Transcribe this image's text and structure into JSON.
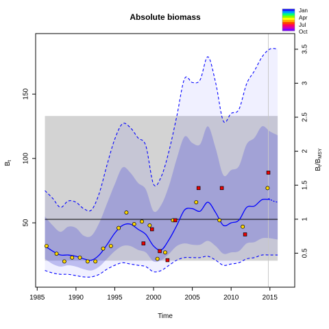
{
  "chart_data": {
    "type": "line",
    "title": "Absolute biomass",
    "xlabel": "Time",
    "ylabel": "B",
    "ylabel_sub": "t",
    "y2label": "B",
    "y2label_sub": "t",
    "y2label_sep": "/B",
    "y2label_sub2": "MSY",
    "xlim": [
      1984.8,
      2018.2
    ],
    "ylim": [
      0,
      197
    ],
    "y2lim": [
      0,
      3.73
    ],
    "x_ticks": [
      1985,
      1990,
      1995,
      2000,
      2005,
      2010,
      2015
    ],
    "y_ticks": [
      50,
      100,
      150
    ],
    "y2_ticks": [
      0.5,
      1.0,
      1.5,
      2.0,
      2.5,
      3.0,
      3.5
    ],
    "y2_tick_labels": [
      "0.5",
      "1",
      "1.5",
      "2",
      "2.5",
      "3",
      "3.5"
    ],
    "bmsy_line": 52.7,
    "gray_band": {
      "x": [
        1986,
        2016
      ],
      "y": [
        20.6,
        133
      ]
    },
    "vline_x": 2014.8,
    "grid": false,
    "legend": {
      "position": "top-right",
      "entries": [
        "Jan",
        "Apr",
        "Jul",
        "Oct"
      ],
      "colors": [
        "#1a1aff",
        "#00a0ff",
        "#00ff80",
        "#80ff00",
        "#ffff00",
        "#ffb000",
        "#ff4000",
        "#ff0060",
        "#d000b0",
        "#8000ff"
      ]
    },
    "series": [
      {
        "role": "upper_ci",
        "color": "#0000ff",
        "x": [
          1986,
          1987,
          1988,
          1989,
          1990,
          1991,
          1992,
          1993,
          1994,
          1995,
          1996,
          1997,
          1998,
          1999,
          2000,
          2001,
          2002,
          2003,
          2004,
          2005,
          2006,
          2007,
          2008,
          2009,
          2010,
          2011,
          2012,
          2013,
          2014,
          2015,
          2016
        ],
        "y": [
          75,
          69,
          62,
          67,
          66,
          61,
          60,
          73,
          95,
          115,
          127,
          124,
          116,
          110,
          80,
          86,
          106,
          133,
          162,
          159,
          161,
          179,
          159,
          129,
          135,
          138,
          158,
          168,
          179,
          185,
          185
        ]
      },
      {
        "role": "median",
        "color": "#0000ff",
        "x": [
          1986,
          1987,
          1988,
          1989,
          1990,
          1991,
          1992,
          1993,
          1994,
          1995,
          1996,
          1997,
          1998,
          1999,
          2000,
          2001,
          2002,
          2003,
          2004,
          2005,
          2006,
          2007,
          2008,
          2009,
          2010,
          2011,
          2012,
          2013,
          2014,
          2015,
          2016
        ],
        "y": [
          32,
          28,
          25,
          25,
          24,
          22,
          21,
          25,
          33,
          42,
          48,
          49,
          45,
          41,
          32,
          29,
          37,
          48,
          60,
          61,
          59,
          66,
          58,
          48,
          50,
          52,
          62,
          63,
          68,
          68,
          67
        ]
      },
      {
        "role": "lower_ci",
        "color": "#0000ff",
        "x": [
          1986,
          1987,
          1988,
          1989,
          1990,
          1991,
          1992,
          1993,
          1994,
          1995,
          1996,
          1997,
          1998,
          1999,
          2000,
          2001,
          2002,
          2003,
          2004,
          2005,
          2006,
          2007,
          2008,
          2009,
          2010,
          2011,
          2012,
          2013,
          2014,
          2015,
          2016
        ],
        "y": [
          13,
          11,
          10,
          10,
          9,
          8,
          8,
          10,
          14,
          17,
          19,
          18,
          17,
          16,
          12,
          13,
          17,
          21,
          23,
          23,
          23,
          24,
          21,
          17,
          18,
          19,
          22,
          23,
          25,
          25,
          25
        ]
      },
      {
        "role": "projection",
        "color": "#0000ff",
        "x": [
          2014.8,
          2015.4,
          2016
        ],
        "y": [
          69,
          67,
          66
        ]
      }
    ],
    "inner_ci": {
      "x": [
        1986,
        1987,
        1988,
        1989,
        1990,
        1991,
        1992,
        1993,
        1994,
        1995,
        1996,
        1997,
        1998,
        1999,
        2000,
        2001,
        2002,
        2003,
        2004,
        2005,
        2006,
        2007,
        2008,
        2009,
        2010,
        2011,
        2012,
        2013,
        2014,
        2015,
        2016
      ],
      "upper": [
        55,
        48,
        43,
        47,
        46,
        40,
        40,
        50,
        65,
        80,
        93,
        89,
        81,
        76,
        59,
        64,
        79,
        100,
        117,
        112,
        111,
        125,
        108,
        87,
        91,
        94,
        111,
        116,
        125,
        121,
        118
      ],
      "lower": [
        22,
        18,
        16,
        17,
        16,
        14,
        13,
        16,
        22,
        28,
        32,
        32,
        29,
        27,
        20,
        21,
        26,
        32,
        34,
        33,
        33,
        36,
        32,
        26,
        27,
        28,
        34,
        35,
        38,
        38,
        37
      ]
    },
    "observations": [
      {
        "x": 1986.2,
        "y": 32,
        "color": "#ffd700"
      },
      {
        "x": 1987.5,
        "y": 26,
        "color": "#ffd700"
      },
      {
        "x": 1988.5,
        "y": 20,
        "color": "#ffd700"
      },
      {
        "x": 1989.5,
        "y": 23,
        "color": "#ffd700"
      },
      {
        "x": 1990.5,
        "y": 23,
        "color": "#ffd700"
      },
      {
        "x": 1991.5,
        "y": 20,
        "color": "#ffd700"
      },
      {
        "x": 1992.5,
        "y": 20,
        "color": "#ffd700"
      },
      {
        "x": 1993.5,
        "y": 30,
        "color": "#ffd700"
      },
      {
        "x": 1994.5,
        "y": 32,
        "color": "#ffd700"
      },
      {
        "x": 1995.5,
        "y": 46,
        "color": "#ffd700"
      },
      {
        "x": 1996.5,
        "y": 58,
        "color": "#ffd700"
      },
      {
        "x": 1997.5,
        "y": 49,
        "color": "#ffd700"
      },
      {
        "x": 1998.5,
        "y": 51,
        "color": "#ffd700"
      },
      {
        "x": 1999.5,
        "y": 48,
        "color": "#ffd700"
      },
      {
        "x": 2000.5,
        "y": 22,
        "color": "#ffd700"
      },
      {
        "x": 2001.5,
        "y": 27,
        "color": "#ffd700"
      },
      {
        "x": 2002.5,
        "y": 52,
        "color": "#ffd700"
      },
      {
        "x": 2005.5,
        "y": 66,
        "color": "#ffd700"
      },
      {
        "x": 2008.5,
        "y": 52,
        "color": "#ffd700"
      },
      {
        "x": 2011.5,
        "y": 47,
        "color": "#ffd700"
      },
      {
        "x": 2014.7,
        "y": 77,
        "color": "#ffd700"
      }
    ],
    "indices": [
      {
        "x": 1998.7,
        "y": 34,
        "color": "#ee0000"
      },
      {
        "x": 1999.8,
        "y": 45,
        "color": "#ee0000"
      },
      {
        "x": 2000.8,
        "y": 28,
        "color": "#ee0000"
      },
      {
        "x": 2001.8,
        "y": 21,
        "color": "#ee0000"
      },
      {
        "x": 2002.8,
        "y": 52,
        "color": "#ee0000"
      },
      {
        "x": 2005.8,
        "y": 77,
        "color": "#ee0000"
      },
      {
        "x": 2008.8,
        "y": 77,
        "color": "#ee0000"
      },
      {
        "x": 2011.8,
        "y": 41,
        "color": "#ee0000"
      },
      {
        "x": 2014.8,
        "y": 89,
        "color": "#ee0000"
      }
    ]
  }
}
